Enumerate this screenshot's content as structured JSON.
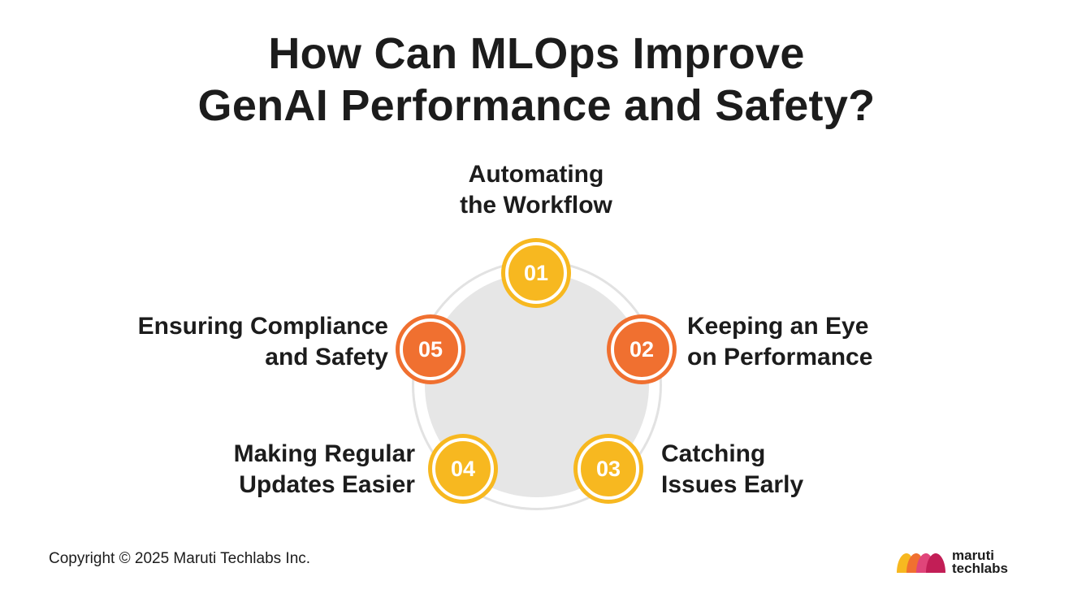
{
  "title": {
    "line1": "How Can MLOps Improve",
    "line2": "GenAI Performance and Safety?"
  },
  "steps": [
    {
      "number": "01",
      "line1": "Automating",
      "line2": "the Workflow",
      "color": "#f7b820"
    },
    {
      "number": "02",
      "line1": "Keeping an Eye",
      "line2": "on Performance",
      "color": "#f07030"
    },
    {
      "number": "03",
      "line1": "Catching",
      "line2": "Issues Early",
      "color": "#f7b820"
    },
    {
      "number": "04",
      "line1": "Making Regular",
      "line2": "Updates Easier",
      "color": "#f7b820"
    },
    {
      "number": "05",
      "line1": "Ensuring Compliance",
      "line2": "and Safety",
      "color": "#f07030"
    }
  ],
  "footer": {
    "copyright": "Copyright © 2025 Maruti Techlabs Inc.",
    "logo_line1": "maruti",
    "logo_line2": "techlabs",
    "logo_icon": "maruti-techlabs-logo-icon"
  }
}
